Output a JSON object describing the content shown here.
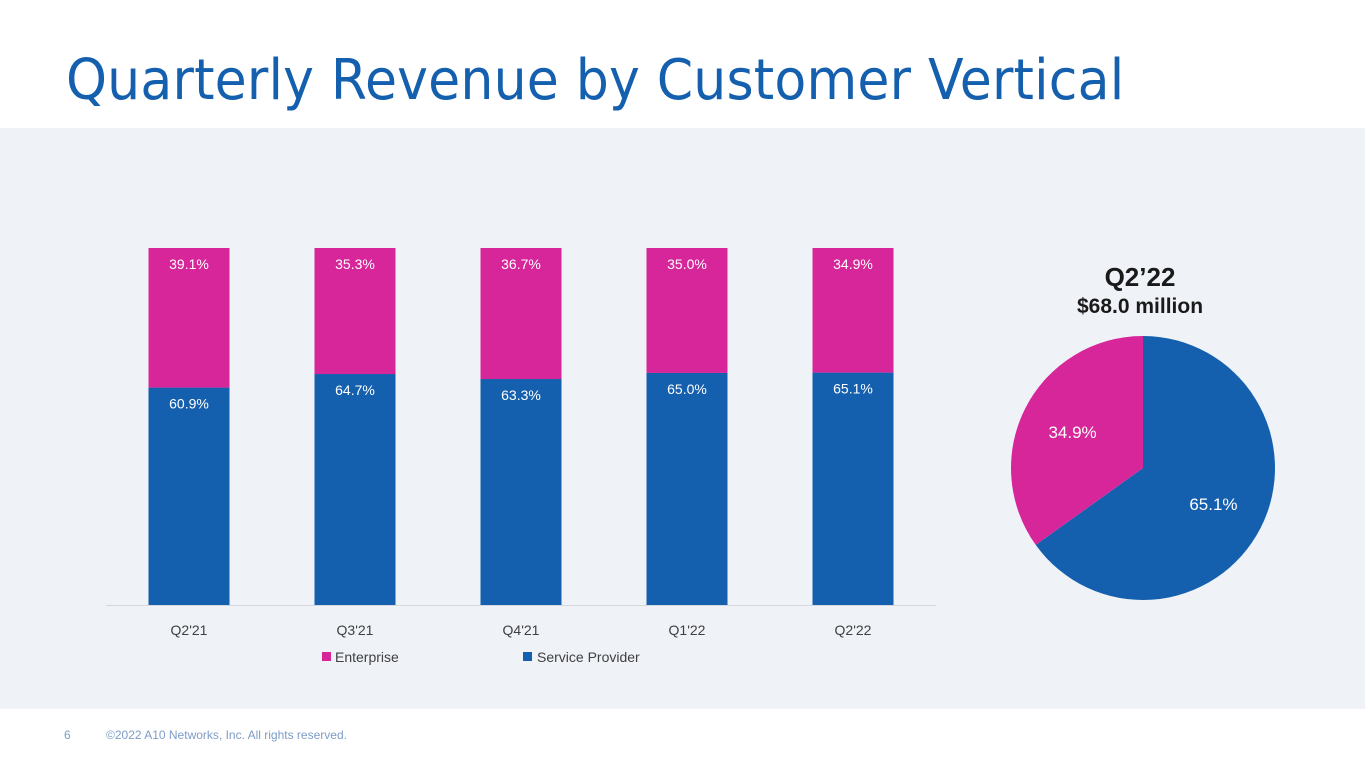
{
  "slide": {
    "title": "Quarterly Revenue by Customer Vertical",
    "page_number": "6",
    "copyright": "©2022 A10 Networks, Inc. All rights reserved."
  },
  "colors": {
    "service_provider": "#1560ae",
    "enterprise": "#d6269a",
    "title": "#1560ae",
    "panel_background": "#eff2f7"
  },
  "chart_data": [
    {
      "type": "bar",
      "stacked": true,
      "categories": [
        "Q2'21",
        "Q3'21",
        "Q4'21",
        "Q1'22",
        "Q2'22"
      ],
      "series": [
        {
          "name": "Service Provider",
          "values": [
            60.9,
            64.7,
            63.3,
            65.0,
            65.1
          ],
          "labels": [
            "60.9%",
            "64.7%",
            "63.3%",
            "65.0%",
            "65.1%"
          ],
          "color": "#1560ae"
        },
        {
          "name": "Enterprise",
          "values": [
            39.1,
            35.3,
            36.7,
            35.0,
            34.9
          ],
          "labels": [
            "39.1%",
            "35.3%",
            "36.7%",
            "35.0%",
            "34.9%"
          ],
          "color": "#d6269a"
        }
      ],
      "ylim": [
        0,
        100
      ],
      "legend": {
        "position": "bottom",
        "entries": [
          "Enterprise",
          "Service Provider"
        ]
      },
      "grid": false
    },
    {
      "type": "pie",
      "title": "Q2’22",
      "subtitle": "$68.0 million",
      "slices": [
        {
          "name": "Service Provider",
          "value": 65.1,
          "label": "65.1%",
          "color": "#1560ae"
        },
        {
          "name": "Enterprise",
          "value": 34.9,
          "label": "34.9%",
          "color": "#d6269a"
        }
      ]
    }
  ]
}
